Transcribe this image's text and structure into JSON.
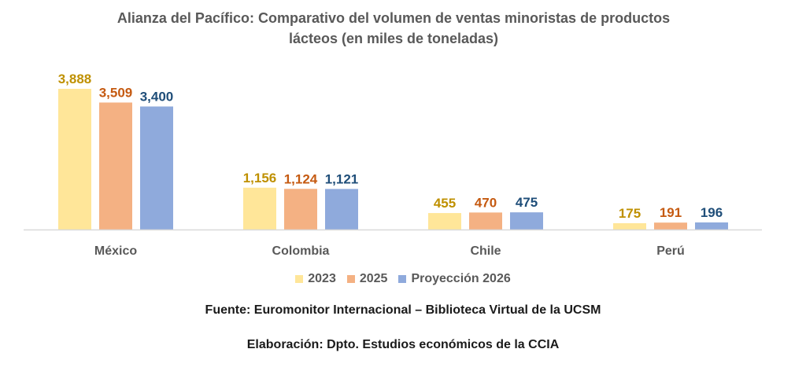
{
  "chart_data": {
    "type": "bar",
    "title": "Alianza del Pacífico: Comparativo del volumen de ventas minoristas de productos lácteos (en miles de toneladas)",
    "title_lines": [
      "Alianza del Pacífico: Comparativo del volumen de ventas minoristas de productos",
      "lácteos (en miles de toneladas)"
    ],
    "categories": [
      "México",
      "Colombia",
      "Chile",
      "Perú"
    ],
    "series": [
      {
        "name": "2023",
        "values": [
          3888,
          1156,
          455,
          175
        ],
        "labels": [
          "3,888",
          "1,156",
          "455",
          "175"
        ],
        "color": "#FFE699",
        "label_color": "#BF9000"
      },
      {
        "name": "2025",
        "values": [
          3509,
          1124,
          470,
          191
        ],
        "labels": [
          "3,509",
          "1,124",
          "470",
          "191"
        ],
        "color": "#F4B183",
        "label_color": "#C55A11"
      },
      {
        "name": "Proyección 2026",
        "values": [
          3400,
          1121,
          475,
          196
        ],
        "labels": [
          "3,400",
          "1,121",
          "475",
          "196"
        ],
        "color": "#8FAADC",
        "label_color": "#1F4E79"
      }
    ],
    "xlabel": "",
    "ylabel": "",
    "ylim": [
      0,
      3888
    ],
    "grid": false,
    "legend_position": "bottom"
  },
  "footer": {
    "source": "Fuente: Euromonitor Internacional – Biblioteca Virtual de la UCSM",
    "elaboration": "Elaboración: Dpto. Estudios económicos de la CCIA"
  }
}
